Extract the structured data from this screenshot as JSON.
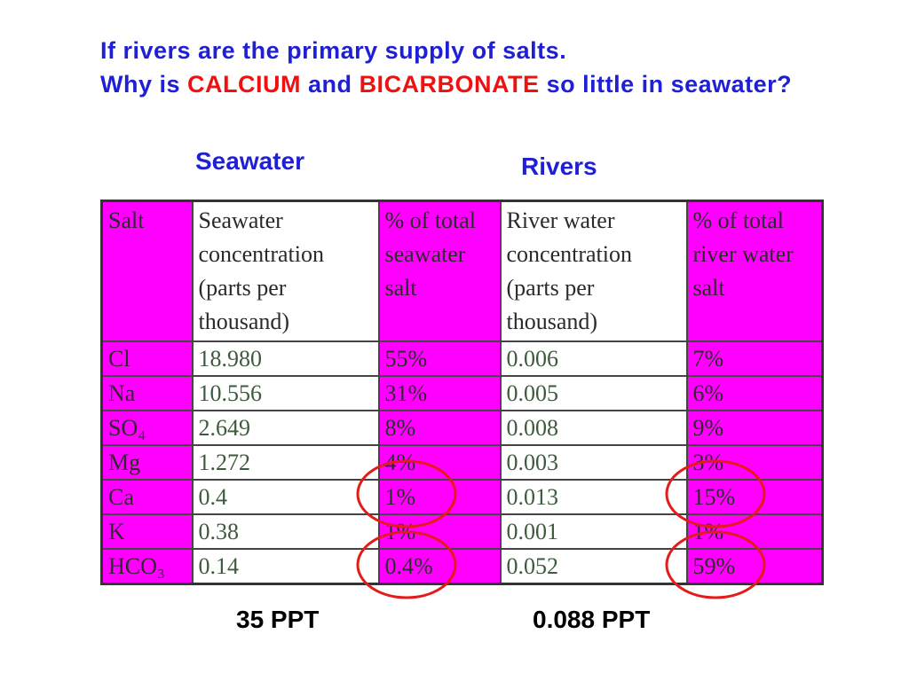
{
  "title": {
    "line1": "If rivers are the primary supply of salts.",
    "parts": [
      "Why is",
      "CALCIUM",
      "and",
      "BICARBONATE",
      "so little in seawater?"
    ]
  },
  "labels": {
    "seawater": "Seawater",
    "rivers": "Rivers"
  },
  "table": {
    "header": [
      "Salt",
      "Seawater concentration (parts per thousand)",
      "% of total seawater salt",
      "River water concentration (parts per thousand)",
      "% of total river water salt"
    ],
    "rows": [
      [
        "Cl",
        "18.980",
        "55%",
        "0.006",
        "7%"
      ],
      [
        "Na",
        "10.556",
        "31%",
        "0.005",
        "6%"
      ],
      [
        "SO₄",
        "2.649",
        "8%",
        "0.008",
        "9%"
      ],
      [
        "Mg",
        "1.272",
        "4%",
        "0.003",
        "3%"
      ],
      [
        "Ca",
        "0.4",
        "1%",
        "0.013",
        "15%"
      ],
      [
        "K",
        "0.38",
        "1%",
        "0.001",
        "1%"
      ],
      [
        "HCO₃",
        "0.14",
        "0.4%",
        "0.052",
        "59%"
      ]
    ]
  },
  "totals": {
    "seawater": "35 PPT",
    "rivers": "0.088 PPT"
  }
}
